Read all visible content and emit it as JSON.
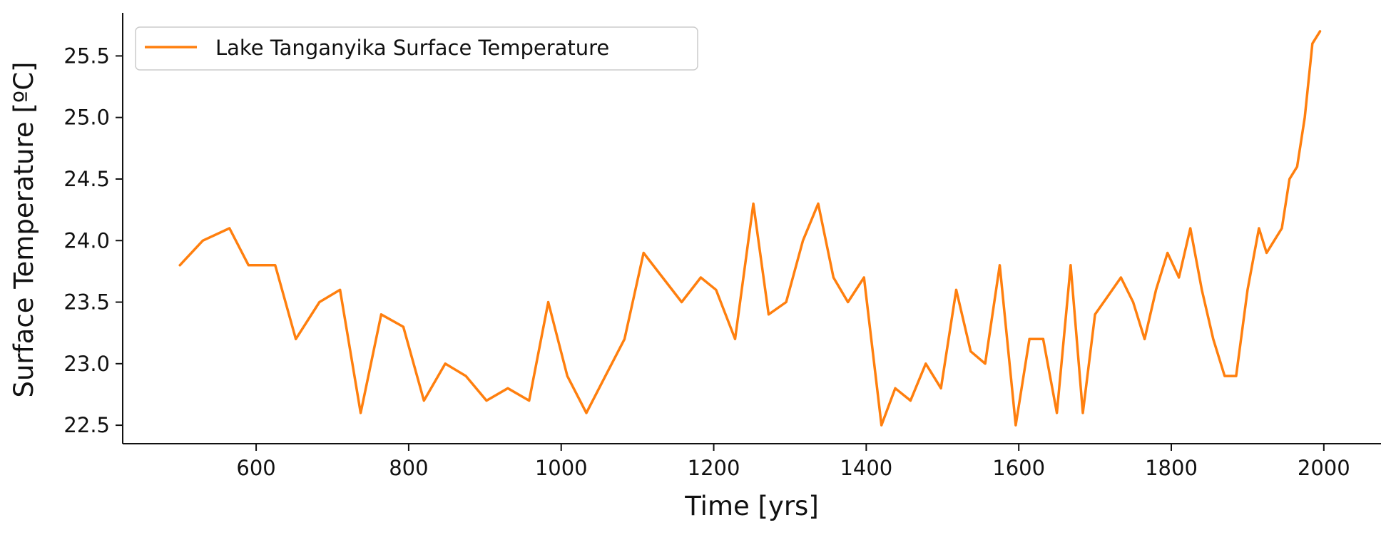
{
  "chart_data": {
    "type": "line",
    "title": "",
    "xlabel": "Time [yrs]",
    "ylabel": "Surface Temperature [ºC]",
    "xlim": [
      425,
      2075
    ],
    "ylim": [
      22.35,
      25.85
    ],
    "xticks": [
      600,
      800,
      1000,
      1200,
      1400,
      1600,
      1800,
      2000
    ],
    "xtick_labels": [
      "600",
      "800",
      "1000",
      "1200",
      "1400",
      "1600",
      "1800",
      "2000"
    ],
    "yticks": [
      22.5,
      23.0,
      23.5,
      24.0,
      24.5,
      25.0,
      25.5
    ],
    "ytick_labels": [
      "22.5",
      "23.0",
      "23.5",
      "24.0",
      "24.5",
      "25.0",
      "25.5"
    ],
    "grid": false,
    "legend_position": "top-left",
    "series": [
      {
        "name": "Lake Tanganyika Surface Temperature",
        "color": "#ff7f0e",
        "x": [
          500,
          530,
          565,
          590,
          610,
          625,
          652,
          683,
          710,
          737,
          764,
          793,
          820,
          848,
          875,
          902,
          930,
          958,
          983,
          1008,
          1033,
          1058,
          1083,
          1108,
          1133,
          1158,
          1183,
          1203,
          1228,
          1252,
          1272,
          1295,
          1317,
          1337,
          1357,
          1376,
          1397,
          1420,
          1438,
          1458,
          1478,
          1498,
          1518,
          1537,
          1556,
          1575,
          1596,
          1614,
          1632,
          1650,
          1668,
          1684,
          1700,
          1717,
          1734,
          1750,
          1765,
          1780,
          1795,
          1810,
          1825,
          1840,
          1855,
          1870,
          1885,
          1900,
          1915,
          1925,
          1945,
          1955,
          1965,
          1975,
          1985,
          1995
        ],
        "values": [
          23.8,
          24.0,
          24.1,
          23.8,
          23.8,
          23.8,
          23.2,
          23.5,
          23.6,
          22.6,
          23.4,
          23.3,
          22.7,
          23.0,
          22.9,
          22.7,
          22.8,
          22.7,
          23.5,
          22.9,
          22.6,
          22.9,
          23.2,
          23.9,
          23.7,
          23.5,
          23.7,
          23.6,
          23.2,
          24.3,
          23.4,
          23.5,
          24.0,
          24.3,
          23.7,
          23.5,
          23.7,
          22.5,
          22.8,
          22.7,
          23.0,
          22.8,
          23.6,
          23.1,
          23.0,
          23.8,
          22.5,
          23.2,
          23.2,
          22.6,
          23.8,
          22.6,
          23.4,
          23.55,
          23.7,
          23.5,
          23.2,
          23.6,
          23.9,
          23.7,
          24.1,
          23.6,
          23.2,
          22.9,
          22.9,
          23.6,
          24.1,
          23.9,
          24.1,
          24.5,
          24.6,
          25.0,
          25.6,
          25.7
        ]
      }
    ]
  }
}
